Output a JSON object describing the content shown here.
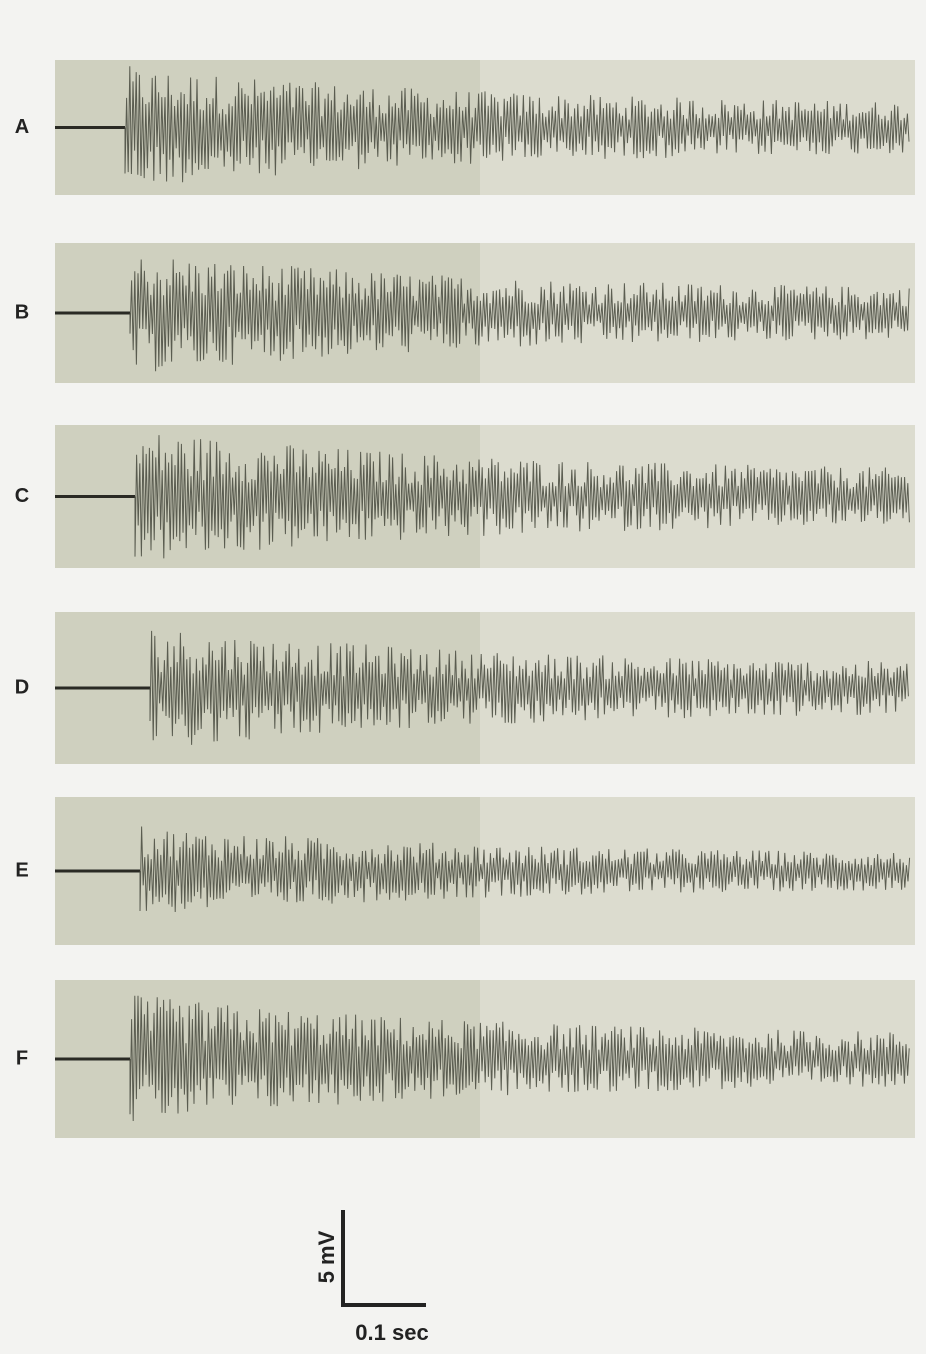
{
  "panels": [
    {
      "label": "A"
    },
    {
      "label": "B"
    },
    {
      "label": "C"
    },
    {
      "label": "D"
    },
    {
      "label": "E"
    },
    {
      "label": "F"
    }
  ],
  "scale_bar": {
    "voltage": "5 mV",
    "time": "0.1 sec"
  }
}
